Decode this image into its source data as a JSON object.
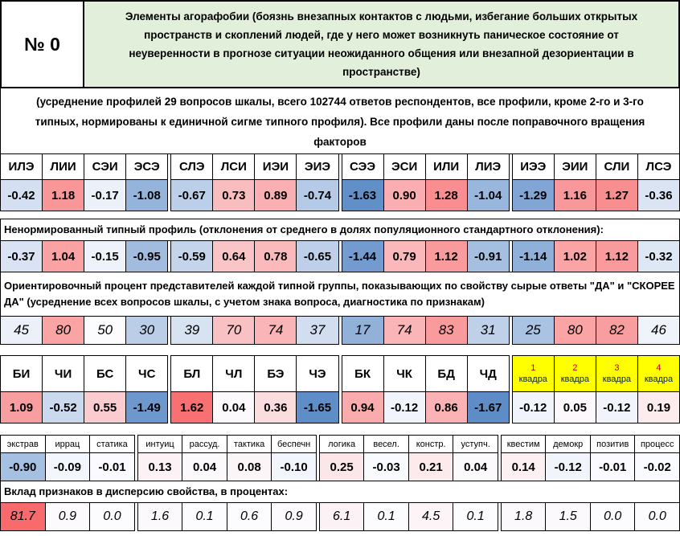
{
  "header": {
    "number": "№ 0",
    "title": "Элементы агорафобии (боязнь внезапных контактов с людьми, избегание больших открытых пространств и скоплений людей, где у него может возникнуть паническое состояние от неуверенности в прогнозе ситуации неожиданного общения или внезапной дезориентации в пространстве)",
    "title_bg": "#E2EFDA"
  },
  "subtitle": "(усреднение профилей 29 вопросов шкалы, всего 102744 ответов респондентов, все профили, кроме 2-го и 3-го типных, нормированы к единичной сигме типного профиля). Все профили даны после поправочного вращения факторов",
  "heatmap": {
    "low": "#5A8AC6",
    "mid": "#FCFCFF",
    "high": "#F8696B"
  },
  "notes": {
    "raw_profile": "Ненормированный типный профиль (отклонения от среднего  в долях популяционного стандартного отклонения):",
    "percent": "Ориентировочный процент представителей каждой типной группы, показывающих по свойству сырые ответы \"ДА\" и \"СКОРЕЕ ДА\" (усреднение всех вопросов шкалы, с учетом знака вопроса, диагностика по признакам)",
    "contribution": "Вклад признаков в дисперсию свойства, в процентах:"
  },
  "types": {
    "names": [
      "ИЛЭ",
      "ЛИИ",
      "СЭИ",
      "ЭСЭ",
      "СЛЭ",
      "ЛСИ",
      "ИЭИ",
      "ЭИЭ",
      "СЭЭ",
      "ЭСИ",
      "ИЛИ",
      "ЛИЭ",
      "ИЭЭ",
      "ЭИИ",
      "СЛИ",
      "ЛСЭ"
    ],
    "normalized_values": [
      "-0.42",
      "1.18",
      "-0.17",
      "-1.08",
      "-0.67",
      "0.73",
      "0.89",
      "-0.74",
      "-1.63",
      "0.90",
      "1.28",
      "-1.04",
      "-1.29",
      "1.16",
      "1.27",
      "-0.36"
    ],
    "raw_values": [
      "-0.37",
      "1.04",
      "-0.15",
      "-0.95",
      "-0.59",
      "0.64",
      "0.78",
      "-0.65",
      "-1.44",
      "0.79",
      "1.12",
      "-0.91",
      "-1.14",
      "1.02",
      "1.12",
      "-0.32"
    ],
    "percent_values": [
      "45",
      "80",
      "50",
      "30",
      "39",
      "70",
      "74",
      "37",
      "17",
      "74",
      "83",
      "31",
      "25",
      "80",
      "82",
      "46"
    ],
    "value_scale": {
      "lo": -1.7,
      "mid": 0,
      "hi": 1.7
    },
    "percent_scale": {
      "lo": 0,
      "mid": 50,
      "hi": 100
    }
  },
  "functions": {
    "columns": [
      "БИ",
      "ЧИ",
      "БС",
      "ЧС",
      "БЛ",
      "ЧЛ",
      "БЭ",
      "ЧЭ",
      "БК",
      "ЧК",
      "БД",
      "ЧД",
      {
        "num": "1",
        "label": "квадра"
      },
      {
        "num": "2",
        "label": "квадра"
      },
      {
        "num": "3",
        "label": "квадра"
      },
      {
        "num": "4",
        "label": "квадра"
      }
    ],
    "values": [
      "1.09",
      "-0.52",
      "0.55",
      "-1.49",
      "1.62",
      "0.04",
      "0.36",
      "-1.65",
      "0.94",
      "-0.12",
      "0.86",
      "-1.67",
      "-0.12",
      "0.05",
      "-0.12",
      "0.19"
    ],
    "value_scale": {
      "lo": -1.7,
      "mid": 0,
      "hi": 1.7
    }
  },
  "traits": {
    "names": [
      "экстрав",
      "иррац",
      "статика",
      "интуиц",
      "рассуд.",
      "тактика",
      "беспечн",
      "логика",
      "весел.",
      "констр.",
      "уступч.",
      "квестим",
      "демокр",
      "позитив",
      "процесс"
    ],
    "values": [
      "-0.90",
      "-0.09",
      "-0.01",
      "0.13",
      "0.04",
      "0.08",
      "-0.10",
      "0.25",
      "-0.03",
      "0.21",
      "0.04",
      "0.14",
      "-0.12",
      "-0.01",
      "-0.02"
    ],
    "value_scale": {
      "lo": -1.7,
      "mid": 0,
      "hi": 1.7
    },
    "contribution_values": [
      "81.7",
      "0.9",
      "0.0",
      "1.6",
      "0.1",
      "0.6",
      "0.9",
      "6.1",
      "0.1",
      "4.5",
      "0.1",
      "1.8",
      "1.5",
      "0.0",
      "0.0"
    ],
    "contribution_scale": {
      "lo": -82,
      "mid": 0,
      "hi": 82
    }
  }
}
